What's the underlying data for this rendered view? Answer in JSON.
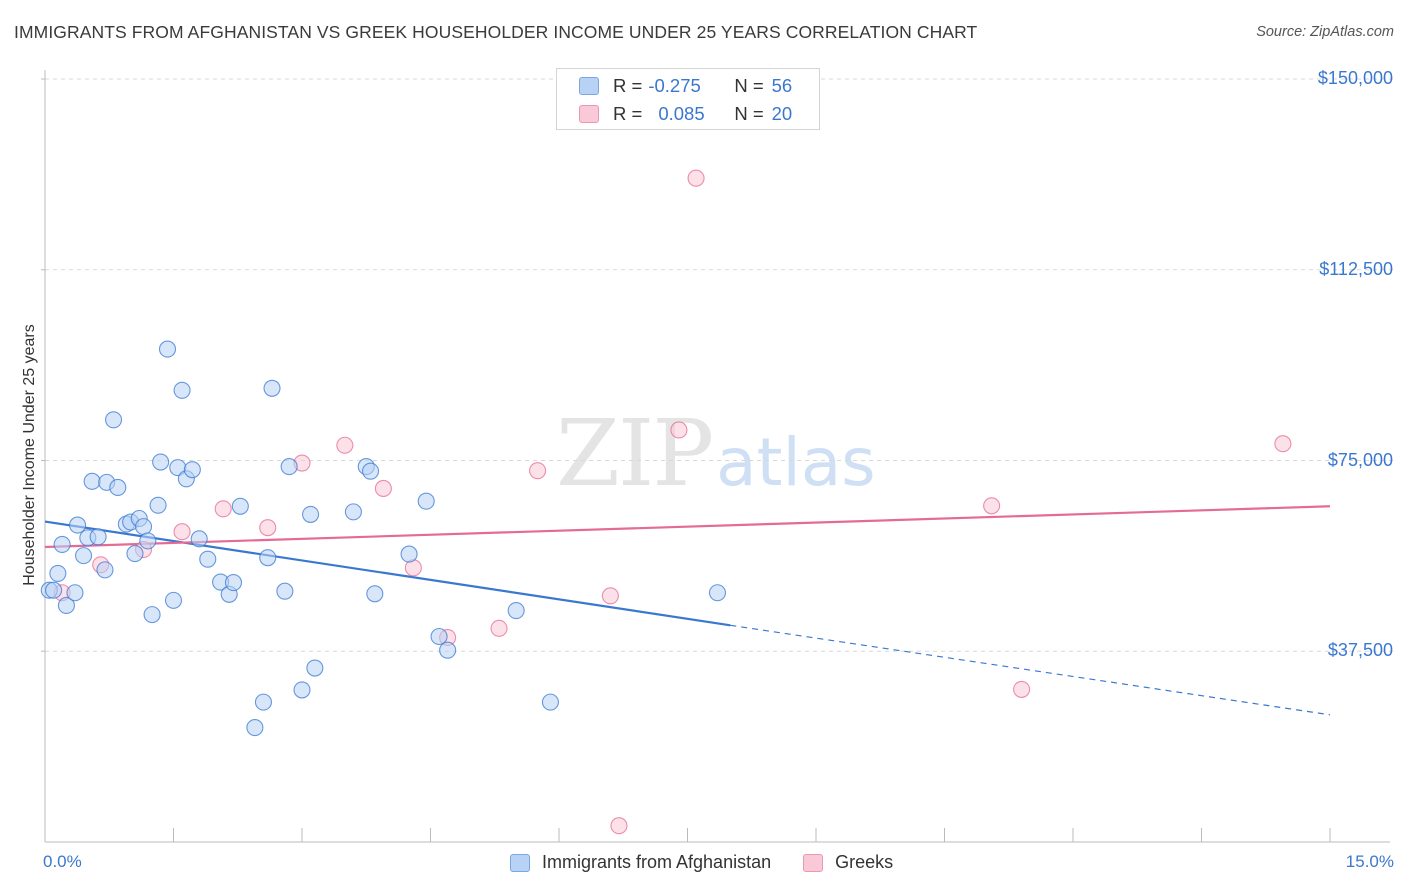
{
  "title": "IMMIGRANTS FROM AFGHANISTAN VS GREEK HOUSEHOLDER INCOME UNDER 25 YEARS CORRELATION CHART",
  "source": "Source: ZipAtlas.com",
  "watermark": {
    "zip": "ZIP",
    "atlas": "atlas"
  },
  "legend_top": {
    "rows": [
      {
        "r_label": "R =",
        "r_value": "-0.275",
        "n_label": "N =",
        "n_value": "56"
      },
      {
        "r_label": "R =",
        "r_value": "0.085",
        "n_label": "N =",
        "n_value": "20"
      }
    ]
  },
  "legend_bottom": {
    "items": [
      "Immigrants from Afghanistan",
      "Greeks"
    ]
  },
  "colors": {
    "blue": "#3a78d0",
    "blue_fill": "#b8d2f6",
    "pink": "#e46b96",
    "pink_fill": "#f9c9d7",
    "grid": "#d8d8d8"
  },
  "chart_data": {
    "type": "scatter",
    "title": "IMMIGRANTS FROM AFGHANISTAN VS GREEK HOUSEHOLDER INCOME UNDER 25 YEARS CORRELATION CHART",
    "xlabel": "",
    "ylabel": "Householder Income Under 25 years",
    "xlim": [
      0,
      15
    ],
    "ylim": [
      0,
      155000
    ],
    "x_tick_labels": [
      "0.0%",
      "15.0%"
    ],
    "y_ticks": [
      37500,
      75000,
      112500,
      150000
    ],
    "y_tick_labels": [
      "$37,500",
      "$75,000",
      "$112,500",
      "$150,000"
    ],
    "grid": true,
    "series": [
      {
        "name": "Immigrants from Afghanistan",
        "color": "#3a78d0",
        "r": -0.275,
        "n": 56,
        "trend": {
          "x": [
            0,
            8.0,
            15
          ],
          "y": [
            63000,
            42600,
            25000
          ],
          "solid_until": 8.0
        },
        "points": [
          [
            0.05,
            49500
          ],
          [
            0.15,
            52800
          ],
          [
            0.2,
            58500
          ],
          [
            0.25,
            46500
          ],
          [
            0.35,
            49000
          ],
          [
            0.38,
            62300
          ],
          [
            0.45,
            56300
          ],
          [
            0.5,
            59800
          ],
          [
            0.55,
            70900
          ],
          [
            0.62,
            60000
          ],
          [
            0.7,
            53500
          ],
          [
            0.72,
            70700
          ],
          [
            0.8,
            83000
          ],
          [
            0.85,
            69700
          ],
          [
            0.95,
            62500
          ],
          [
            1.0,
            62900
          ],
          [
            1.05,
            56700
          ],
          [
            1.1,
            63600
          ],
          [
            1.15,
            62000
          ],
          [
            1.2,
            59200
          ],
          [
            1.25,
            44700
          ],
          [
            1.32,
            66200
          ],
          [
            1.35,
            74700
          ],
          [
            1.43,
            96900
          ],
          [
            1.5,
            47500
          ],
          [
            1.55,
            73600
          ],
          [
            1.6,
            88800
          ],
          [
            1.65,
            71400
          ],
          [
            1.72,
            73200
          ],
          [
            1.8,
            59600
          ],
          [
            1.9,
            55600
          ],
          [
            2.05,
            51100
          ],
          [
            2.15,
            48700
          ],
          [
            2.2,
            51000
          ],
          [
            2.28,
            66000
          ],
          [
            2.45,
            22500
          ],
          [
            2.55,
            27500
          ],
          [
            2.6,
            55900
          ],
          [
            2.65,
            89200
          ],
          [
            2.8,
            49300
          ],
          [
            2.85,
            73800
          ],
          [
            3.0,
            29900
          ],
          [
            3.1,
            64400
          ],
          [
            3.15,
            34200
          ],
          [
            3.6,
            64900
          ],
          [
            3.75,
            73800
          ],
          [
            3.8,
            72900
          ],
          [
            3.85,
            48800
          ],
          [
            4.25,
            56600
          ],
          [
            4.45,
            67000
          ],
          [
            4.6,
            40400
          ],
          [
            4.7,
            37700
          ],
          [
            5.5,
            45500
          ],
          [
            5.9,
            27500
          ],
          [
            7.85,
            49000
          ],
          [
            0.1,
            49500
          ]
        ]
      },
      {
        "name": "Greeks",
        "color": "#e46b96",
        "r": 0.085,
        "n": 20,
        "trend": {
          "x": [
            0,
            15
          ],
          "y": [
            58000,
            66000
          ]
        },
        "points": [
          [
            0.2,
            49000
          ],
          [
            0.65,
            54500
          ],
          [
            1.15,
            57500
          ],
          [
            1.6,
            61000
          ],
          [
            2.08,
            65500
          ],
          [
            2.6,
            61800
          ],
          [
            3.0,
            74500
          ],
          [
            3.5,
            78000
          ],
          [
            3.95,
            69500
          ],
          [
            4.3,
            53900
          ],
          [
            4.7,
            40200
          ],
          [
            5.3,
            42000
          ],
          [
            5.75,
            73000
          ],
          [
            6.6,
            48400
          ],
          [
            6.7,
            3200
          ],
          [
            7.4,
            81000
          ],
          [
            7.6,
            130500
          ],
          [
            11.05,
            66100
          ],
          [
            11.4,
            30000
          ],
          [
            14.45,
            78300
          ]
        ]
      }
    ]
  }
}
